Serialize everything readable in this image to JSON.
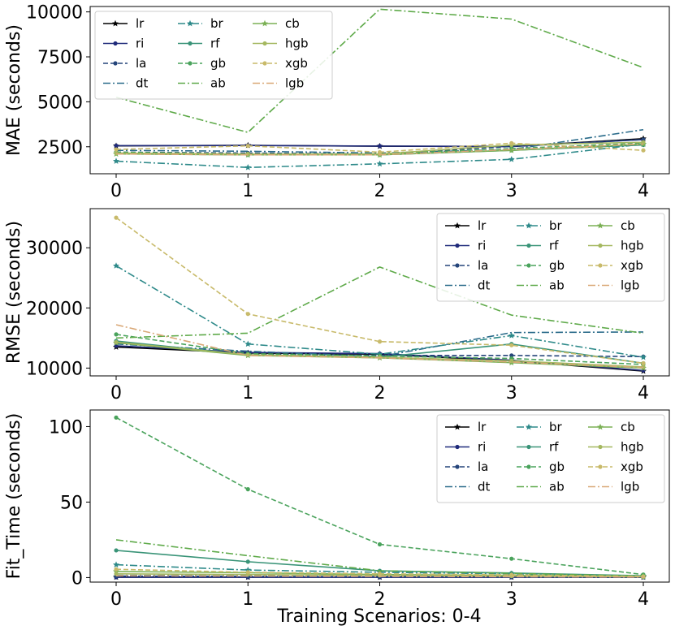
{
  "figure": {
    "xlabel": "Training Scenarios: 0-4",
    "legend_columns": 3
  },
  "model_styles": {
    "lr": {
      "color": "#000000",
      "dash": "solid",
      "marker": "star"
    },
    "ri": {
      "color": "#1f2a7a",
      "dash": "solid",
      "marker": "circle"
    },
    "la": {
      "color": "#25457a",
      "dash": "dashed",
      "marker": "circle"
    },
    "dt": {
      "color": "#2a6b8a",
      "dash": "dashdot",
      "marker": "none"
    },
    "br": {
      "color": "#2e8a8a",
      "dash": "dashdot",
      "marker": "star"
    },
    "rf": {
      "color": "#3a9478",
      "dash": "solid",
      "marker": "circle"
    },
    "gb": {
      "color": "#4aa35c",
      "dash": "dashed",
      "marker": "circle"
    },
    "ab": {
      "color": "#5faa4a",
      "dash": "dashdot",
      "marker": "none"
    },
    "cb": {
      "color": "#7bb055",
      "dash": "solid",
      "marker": "star"
    },
    "hgb": {
      "color": "#a5b860",
      "dash": "solid",
      "marker": "circle"
    },
    "xgb": {
      "color": "#c8ba6a",
      "dash": "dashed",
      "marker": "circle"
    },
    "lgb": {
      "color": "#d9a877",
      "dash": "dashdot",
      "marker": "none"
    }
  },
  "chart_data": [
    {
      "type": "line",
      "id": "mae",
      "ylabel": "MAE (seconds)",
      "x": [
        0,
        1,
        2,
        3,
        4
      ],
      "xticks": [
        "0",
        "1",
        "2",
        "3",
        "4"
      ],
      "ylim": [
        1000,
        10300
      ],
      "yticks": [
        2500,
        5000,
        7500,
        10000
      ],
      "ytick_labels": [
        "2500",
        "5000",
        "7500",
        "10000"
      ],
      "legend_position": "top-left",
      "series": [
        {
          "name": "lr",
          "values": [
            2550,
            2580,
            2530,
            2520,
            2950
          ]
        },
        {
          "name": "ri",
          "values": [
            2560,
            2570,
            2540,
            2510,
            2900
          ]
        },
        {
          "name": "la",
          "values": [
            2200,
            2150,
            2100,
            2520,
            2900
          ]
        },
        {
          "name": "dt",
          "values": [
            2300,
            2250,
            2150,
            2350,
            3450
          ]
        },
        {
          "name": "br",
          "values": [
            1700,
            1350,
            1550,
            1800,
            2650
          ]
        },
        {
          "name": "rf",
          "values": [
            2150,
            2050,
            2050,
            2300,
            2600
          ]
        },
        {
          "name": "gb",
          "values": [
            2200,
            2100,
            2100,
            2400,
            2700
          ]
        },
        {
          "name": "ab",
          "values": [
            5250,
            3300,
            10150,
            9600,
            6900
          ]
        },
        {
          "name": "cb",
          "values": [
            2100,
            2050,
            2050,
            2300,
            2650
          ]
        },
        {
          "name": "hgb",
          "values": [
            2150,
            2100,
            2100,
            2600,
            2750
          ]
        },
        {
          "name": "xgb",
          "values": [
            2350,
            2550,
            2200,
            2700,
            2300
          ]
        },
        {
          "name": "lgb",
          "values": [
            2100,
            2050,
            2050,
            2350,
            2650
          ]
        }
      ]
    },
    {
      "type": "line",
      "id": "rmse",
      "ylabel": "RMSE (seconds)",
      "x": [
        0,
        1,
        2,
        3,
        4
      ],
      "xticks": [
        "0",
        "1",
        "2",
        "3",
        "4"
      ],
      "ylim": [
        8700,
        36500
      ],
      "yticks": [
        10000,
        20000,
        30000
      ],
      "ytick_labels": [
        "10000",
        "20000",
        "30000"
      ],
      "legend_position": "top-right",
      "series": [
        {
          "name": "lr",
          "values": [
            13500,
            12500,
            12300,
            11200,
            9500
          ]
        },
        {
          "name": "ri",
          "values": [
            13700,
            12600,
            12400,
            11300,
            9600
          ]
        },
        {
          "name": "la",
          "values": [
            14200,
            12300,
            12100,
            12100,
            11900
          ]
        },
        {
          "name": "dt",
          "values": [
            14000,
            12800,
            11900,
            15900,
            16000
          ]
        },
        {
          "name": "br",
          "values": [
            27000,
            14000,
            12300,
            15400,
            11800
          ]
        },
        {
          "name": "rf",
          "values": [
            14500,
            12200,
            11800,
            14000,
            10800
          ]
        },
        {
          "name": "gb",
          "values": [
            15600,
            12400,
            12000,
            11600,
            10600
          ]
        },
        {
          "name": "ab",
          "values": [
            15000,
            15800,
            26800,
            18800,
            15800
          ]
        },
        {
          "name": "cb",
          "values": [
            14200,
            12100,
            11700,
            10900,
            10000
          ]
        },
        {
          "name": "hgb",
          "values": [
            14300,
            12200,
            11800,
            11200,
            10200
          ]
        },
        {
          "name": "xgb",
          "values": [
            35000,
            19000,
            14400,
            13800,
            10800
          ]
        },
        {
          "name": "lgb",
          "values": [
            17200,
            12100,
            11700,
            11000,
            10100
          ]
        }
      ]
    },
    {
      "type": "line",
      "id": "fit_time",
      "ylabel": "Fit_Time (seconds)",
      "x": [
        0,
        1,
        2,
        3,
        4
      ],
      "xticks": [
        "0",
        "1",
        "2",
        "3",
        "4"
      ],
      "ylim": [
        -3,
        111
      ],
      "yticks": [
        0,
        50,
        100
      ],
      "ytick_labels": [
        "0",
        "50",
        "100"
      ],
      "legend_position": "top-right",
      "series": [
        {
          "name": "lr",
          "values": [
            0.3,
            0.3,
            0.3,
            0.3,
            0.3
          ]
        },
        {
          "name": "ri",
          "values": [
            0.2,
            0.2,
            0.2,
            0.2,
            0.2
          ]
        },
        {
          "name": "la",
          "values": [
            1.0,
            0.8,
            0.6,
            0.5,
            0.3
          ]
        },
        {
          "name": "dt",
          "values": [
            1.5,
            1.2,
            0.8,
            0.6,
            0.3
          ]
        },
        {
          "name": "br",
          "values": [
            8.5,
            5.0,
            3.5,
            2.5,
            1.0
          ]
        },
        {
          "name": "rf",
          "values": [
            18.0,
            10.5,
            4.5,
            3.0,
            1.2
          ]
        },
        {
          "name": "gb",
          "values": [
            106.0,
            58.5,
            22.0,
            12.5,
            2.0
          ]
        },
        {
          "name": "ab",
          "values": [
            25.0,
            14.5,
            4.5,
            2.8,
            1.0
          ]
        },
        {
          "name": "cb",
          "values": [
            4.0,
            3.2,
            2.0,
            1.5,
            0.8
          ]
        },
        {
          "name": "hgb",
          "values": [
            2.5,
            2.0,
            1.5,
            1.0,
            0.5
          ]
        },
        {
          "name": "xgb",
          "values": [
            5.5,
            3.5,
            2.5,
            1.8,
            0.8
          ]
        },
        {
          "name": "lgb",
          "values": [
            1.2,
            1.0,
            0.8,
            0.6,
            0.3
          ]
        }
      ]
    }
  ]
}
